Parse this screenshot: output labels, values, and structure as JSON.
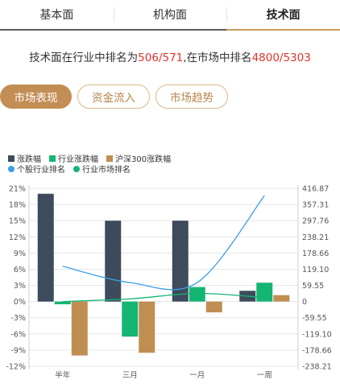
{
  "tabs": [
    {
      "label": "基本面",
      "active": false
    },
    {
      "label": "机构面",
      "active": false
    },
    {
      "label": "技术面",
      "active": true
    }
  ],
  "ranking": {
    "prefix": "技术面在行业中排名为",
    "industry_rank": "506/571",
    "middle": ",在市场中排名",
    "market_rank": "4800/5303"
  },
  "buttons": [
    {
      "label": "市场表现",
      "active": true
    },
    {
      "label": "资金流入",
      "active": false
    },
    {
      "label": "市场趋势",
      "active": false
    }
  ],
  "colors": {
    "stock": "#3d4b5c",
    "industry": "#15b574",
    "hs300": "#c08e52",
    "industry_rank_line": "#3aa0e8",
    "market_rank_line": "#15b574",
    "accent": "#c38e55",
    "highlight": "#e4312b"
  },
  "chart_data": {
    "type": "bar",
    "categories": [
      "半年",
      "三月",
      "一月",
      "一周"
    ],
    "series": [
      {
        "name": "涨跌幅",
        "type": "bar",
        "axis": "left",
        "color": "#3d4b5c",
        "values": [
          20,
          15,
          15,
          2
        ]
      },
      {
        "name": "行业涨跌幅",
        "type": "bar",
        "axis": "left",
        "color": "#15b574",
        "values": [
          -0.5,
          -6.5,
          2.7,
          3.5
        ]
      },
      {
        "name": "沪深300涨跌幅",
        "type": "bar",
        "axis": "left",
        "color": "#c08e52",
        "values": [
          -10,
          -9.5,
          -2,
          1.2
        ]
      },
      {
        "name": "个股行业排名",
        "type": "line",
        "axis": "right",
        "color": "#3aa0e8",
        "values": [
          130,
          70,
          70,
          390
        ]
      },
      {
        "name": "行业市场排名",
        "type": "line",
        "axis": "right",
        "color": "#15b574",
        "values": [
          0,
          10,
          30,
          15
        ]
      }
    ],
    "left_axis": {
      "ticks": [
        21,
        18,
        15,
        12,
        9,
        6,
        3,
        0,
        -3,
        -6,
        -9,
        -12
      ],
      "tick_labels": [
        "21%",
        "18%",
        "15%",
        "12%",
        "9%",
        "6%",
        "3%",
        "0%",
        "-3%",
        "-6%",
        "-9%",
        "-12%"
      ],
      "range": [
        -12,
        21
      ]
    },
    "right_axis": {
      "tick_labels": [
        "416.87",
        "357.31",
        "297.76",
        "238.21",
        "178.66",
        "119.10",
        "59.55",
        "0",
        "-59.55",
        "-119.10",
        "-178.66",
        "-238.21"
      ],
      "range": [
        -238.21,
        416.87
      ]
    },
    "grid": true,
    "legend": "top-left"
  }
}
